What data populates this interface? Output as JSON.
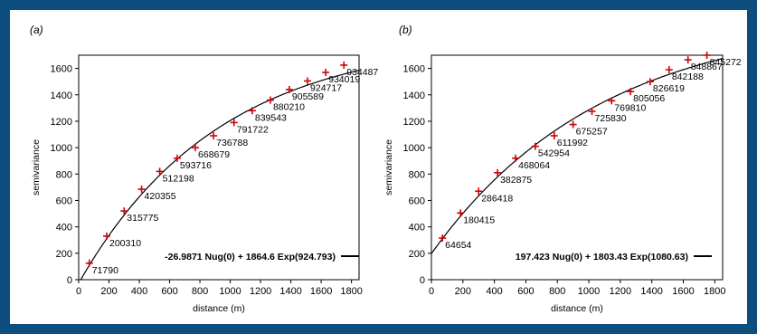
{
  "chart_data": [
    {
      "type": "scatter",
      "panel_label": "(a)",
      "xlabel": "distance  (m)",
      "ylabel": "semivariance",
      "xlim": [
        0,
        1850
      ],
      "ylim": [
        0,
        1700
      ],
      "xticks": [
        0,
        200,
        400,
        600,
        800,
        1000,
        1200,
        1400,
        1600,
        1800
      ],
      "yticks": [
        0,
        200,
        400,
        600,
        800,
        1000,
        1200,
        1400,
        1600
      ],
      "model": {
        "nugget": -26.9871,
        "sill": 1864.6,
        "range": 924.793
      },
      "legend": "-26.9871 Nug(0) + 1864.6 Exp(924.793)",
      "points": [
        {
          "x": 70,
          "y": 125,
          "label": "71790"
        },
        {
          "x": 185,
          "y": 330,
          "label": "200310"
        },
        {
          "x": 300,
          "y": 520,
          "label": "315775"
        },
        {
          "x": 415,
          "y": 685,
          "label": "420355"
        },
        {
          "x": 535,
          "y": 820,
          "label": "512198"
        },
        {
          "x": 650,
          "y": 920,
          "label": "593716"
        },
        {
          "x": 770,
          "y": 1000,
          "label": "668679"
        },
        {
          "x": 890,
          "y": 1090,
          "label": "736788"
        },
        {
          "x": 1025,
          "y": 1190,
          "label": "791722"
        },
        {
          "x": 1145,
          "y": 1280,
          "label": "839543"
        },
        {
          "x": 1265,
          "y": 1360,
          "label": "880210"
        },
        {
          "x": 1390,
          "y": 1440,
          "label": "905589"
        },
        {
          "x": 1510,
          "y": 1505,
          "label": "924717"
        },
        {
          "x": 1630,
          "y": 1570,
          "label": "934019"
        },
        {
          "x": 1750,
          "y": 1625,
          "label": "934487"
        }
      ]
    },
    {
      "type": "scatter",
      "panel_label": "(b)",
      "xlabel": "distance  (m)",
      "ylabel": "semivariance",
      "xlim": [
        0,
        1850
      ],
      "ylim": [
        0,
        1700
      ],
      "xticks": [
        0,
        200,
        400,
        600,
        800,
        1000,
        1200,
        1400,
        1600,
        1800
      ],
      "yticks": [
        0,
        200,
        400,
        600,
        800,
        1000,
        1200,
        1400,
        1600
      ],
      "model": {
        "nugget": 197.423,
        "sill": 1803.43,
        "range": 1080.63
      },
      "legend": "197.423 Nug(0) + 1803.43 Exp(1080.63)",
      "points": [
        {
          "x": 70,
          "y": 315,
          "label": "64654"
        },
        {
          "x": 185,
          "y": 505,
          "label": "180415"
        },
        {
          "x": 300,
          "y": 670,
          "label": "286418"
        },
        {
          "x": 420,
          "y": 810,
          "label": "382875"
        },
        {
          "x": 535,
          "y": 920,
          "label": "468064"
        },
        {
          "x": 660,
          "y": 1010,
          "label": "542954"
        },
        {
          "x": 780,
          "y": 1090,
          "label": "611992"
        },
        {
          "x": 900,
          "y": 1175,
          "label": "675257"
        },
        {
          "x": 1020,
          "y": 1275,
          "label": "725830"
        },
        {
          "x": 1145,
          "y": 1355,
          "label": "769810"
        },
        {
          "x": 1265,
          "y": 1425,
          "label": "805056"
        },
        {
          "x": 1390,
          "y": 1500,
          "label": "826619"
        },
        {
          "x": 1510,
          "y": 1590,
          "label": "842188"
        },
        {
          "x": 1630,
          "y": 1665,
          "label": "848867"
        },
        {
          "x": 1750,
          "y": 1700,
          "label": "845272"
        }
      ]
    }
  ]
}
